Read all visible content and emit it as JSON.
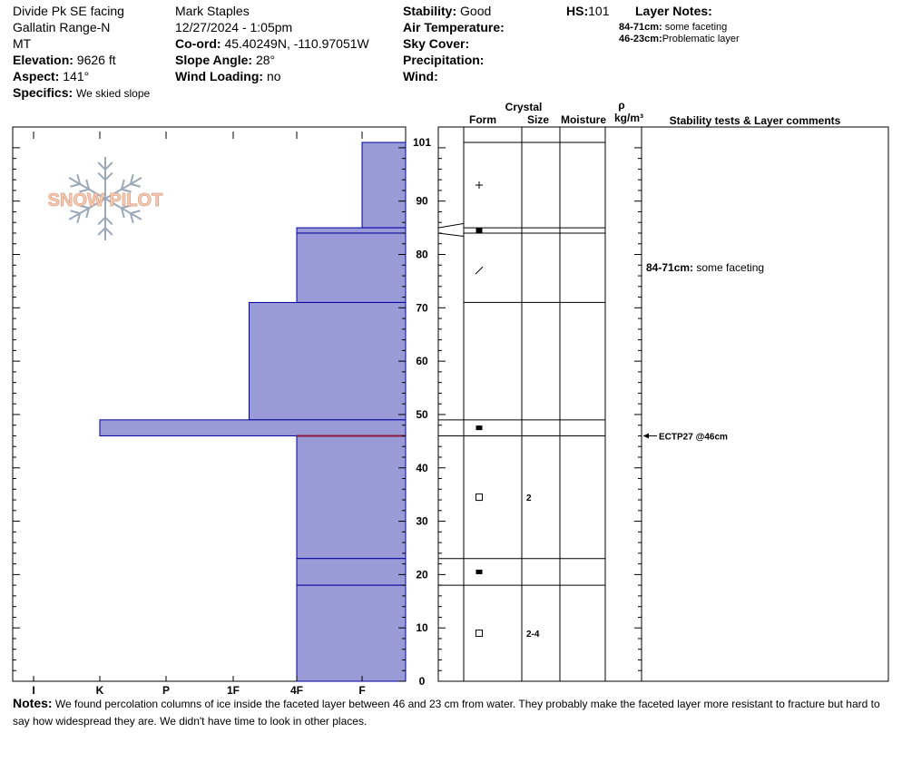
{
  "header": {
    "location": "Divide Pk SE facing",
    "range": "Gallatin Range-N",
    "state": "MT",
    "elevation_label": "Elevation:",
    "elevation_value": "9626 ft",
    "aspect_label": "Aspect:",
    "aspect_value": "141°",
    "specifics_label": "Specifics:",
    "specifics_value": "We skied slope",
    "observer": "Mark Staples",
    "datetime": "12/27/2024 - 1:05pm",
    "coord_label": "Co-ord:",
    "coord_value": "45.40249N, -110.97051W",
    "slope_label": "Slope Angle:",
    "slope_value": "28°",
    "wind_loading_label": "Wind Loading:",
    "wind_loading_value": "no",
    "stability_label": "Stability:",
    "stability_value": "Good",
    "air_temp_label": "Air Temperature:",
    "sky_label": "Sky Cover:",
    "precip_label": "Precipitation:",
    "wind_label": "Wind:",
    "hs_label": "HS:",
    "hs_value": "101",
    "layer_notes_label": "Layer Notes:",
    "layer_note_1_range": "84-71cm:",
    "layer_note_1_text": "some faceting",
    "layer_note_2_range": "46-23cm:",
    "layer_note_2_text": "Problematic layer"
  },
  "logo_text": "SNOW PILOT",
  "columns": {
    "crystal": "Crystal",
    "form": "Form",
    "size": "Size",
    "moisture": "Moisture",
    "rho": "ρ",
    "density_unit": "kg/m³",
    "stability_comments": "Stability tests & Layer comments"
  },
  "notes": {
    "label": "Notes:",
    "text": "We found percolation columns of ice inside the faceted layer between 46 and 23 cm from water. They probably make the faceted layer more resistant to fracture but hard to say how widespread they are. We didn't have time to look in other places."
  },
  "chart_data": {
    "type": "bar",
    "title": "",
    "ylabel": "",
    "ylim": [
      0,
      101
    ],
    "y_ticks": [
      0,
      10,
      20,
      30,
      40,
      50,
      60,
      70,
      80,
      90,
      101
    ],
    "hardness_categories": [
      "I",
      "K",
      "P",
      "1F",
      "4F",
      "F"
    ],
    "hardness_profile": [
      {
        "top": 101,
        "bottom": 85,
        "hardness": "F"
      },
      {
        "top": 85,
        "bottom": 84,
        "hardness": "F to 1F",
        "value": 4.0
      },
      {
        "top": 84,
        "bottom": 71,
        "hardness": "4F"
      },
      {
        "top": 71,
        "bottom": 49,
        "hardness": "1F to P",
        "value": 3.25
      },
      {
        "top": 49,
        "bottom": 46,
        "hardness": "K to P",
        "value": 1.0
      },
      {
        "top": 46,
        "bottom": 23,
        "hardness": "4F"
      },
      {
        "top": 23,
        "bottom": 18,
        "hardness": "F to 1F",
        "value": 4.0
      },
      {
        "top": 18,
        "bottom": 0,
        "hardness": "4F"
      }
    ],
    "layer_boundaries": [
      101,
      85,
      84,
      71,
      49,
      46,
      23,
      18,
      0
    ],
    "crystals": [
      {
        "depth": 93,
        "form": "plus"
      },
      {
        "depth": 84.5,
        "form": "square-filled"
      },
      {
        "depth": 77,
        "form": "slash"
      },
      {
        "depth": 47.5,
        "form": "square-filled"
      },
      {
        "depth": 34.5,
        "form": "square-open",
        "size": "2"
      },
      {
        "depth": 20.5,
        "form": "square-filled"
      },
      {
        "depth": 9,
        "form": "square-open",
        "size": "2-4"
      }
    ],
    "comments": [
      {
        "depth": 77.5,
        "range": "84-71cm:",
        "text": "some faceting"
      }
    ],
    "stability_tests": [
      {
        "depth": 46,
        "text": "ECTP27 @46cm"
      }
    ],
    "weak_layer_depth": 46,
    "colors": {
      "bar_fill": "#9a9ad6",
      "bar_stroke": "#0000a0",
      "weak_layer": "#8b1a3a"
    }
  }
}
